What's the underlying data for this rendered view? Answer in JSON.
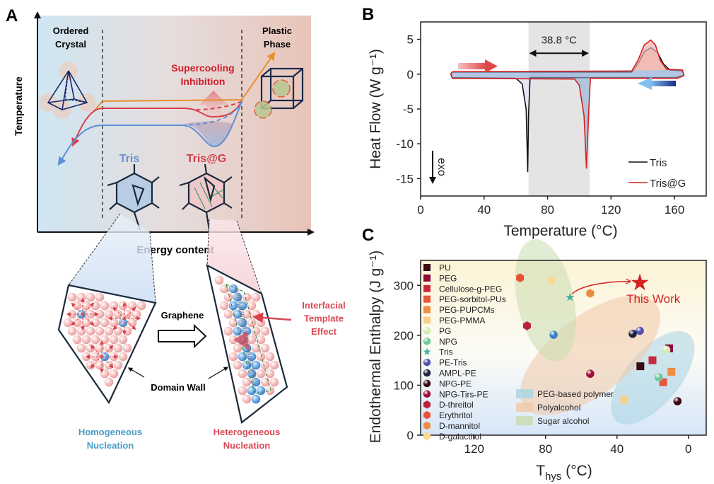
{
  "panels": {
    "a": {
      "letter": "A",
      "y_axis": "Temperature",
      "x_axis": "Energy content",
      "ordered_crystal": [
        "Ordered",
        "Crystal"
      ],
      "plastic_phase": [
        "Plastic",
        "Phase"
      ],
      "supercooling": [
        "Supercooling",
        "Inhibition"
      ],
      "tris": "Tris",
      "tris_g": "Tris@G",
      "graphene": "Graphene",
      "domain_wall": "Domain Wall",
      "interfacial": [
        "Interfacial",
        "Template",
        "Effect"
      ],
      "homogeneous": [
        "Homogeneous",
        "Nucleation"
      ],
      "heterogeneous": [
        "Heterogeneous",
        "Nucleation"
      ],
      "colors": {
        "orange": "#e8902a",
        "red": "#d9404a",
        "blue": "#5b8fd6",
        "tris_text": "#6b8fd0",
        "red_text": "#d0202a",
        "homo_text": "#4a9cc7",
        "hetero_text": "#d84a55"
      }
    },
    "b": {
      "letter": "B"
    },
    "c": {
      "letter": "C"
    }
  },
  "chart_data": [
    {
      "panel": "B",
      "type": "line",
      "xlabel": "Temperature (°C)",
      "ylabel": "Heat Flow (W g⁻¹)",
      "xlim": [
        0,
        180
      ],
      "ylim": [
        -17.5,
        7.5
      ],
      "xticks": [
        0,
        40,
        80,
        120,
        160
      ],
      "yticks": [
        5,
        0,
        -5,
        -10,
        -15
      ],
      "shaded_range": [
        68,
        106.5
      ],
      "annotation": "38.8 °C",
      "exo_label": "exo",
      "legend": "bottom-right",
      "series": [
        {
          "name": "Tris",
          "color": "#111111",
          "heating": [
            [
              20,
              0.3
            ],
            [
              133,
              0.3
            ],
            [
              137,
              1.5
            ],
            [
              141,
              3.2
            ],
            [
              145,
              3.8
            ],
            [
              149,
              3.2
            ],
            [
              153,
              1.5
            ],
            [
              157,
              0.6
            ],
            [
              165,
              0.5
            ]
          ],
          "cooling": [
            [
              165,
              0.5
            ],
            [
              166,
              -0.2
            ],
            [
              160,
              -0.5
            ],
            [
              69,
              -0.5
            ],
            [
              68,
              -6
            ],
            [
              67.5,
              -14
            ],
            [
              66.5,
              -5
            ],
            [
              64,
              -1.4
            ],
            [
              60,
              -0.6
            ],
            [
              20,
              -0.5
            ],
            [
              19,
              0
            ],
            [
              20,
              0.3
            ]
          ]
        },
        {
          "name": "Tris@G",
          "color": "#d42020",
          "heating": [
            [
              20,
              0.35
            ],
            [
              133,
              0.45
            ],
            [
              137,
              2
            ],
            [
              141,
              4.2
            ],
            [
              145,
              4.9
            ],
            [
              148,
              4.2
            ],
            [
              151,
              2
            ],
            [
              155,
              0.7
            ],
            [
              165,
              0.6
            ]
          ],
          "cooling": [
            [
              165,
              0.6
            ],
            [
              166,
              -0.2
            ],
            [
              162,
              -0.6
            ],
            [
              107,
              -0.6
            ],
            [
              106,
              -5
            ],
            [
              104.5,
              -13.5
            ],
            [
              103,
              -6
            ],
            [
              100,
              -1.6
            ],
            [
              97,
              -0.7
            ],
            [
              20,
              -0.6
            ],
            [
              19,
              0
            ],
            [
              20,
              0.35
            ]
          ]
        }
      ]
    },
    {
      "panel": "C",
      "type": "scatter",
      "xlabel": "T",
      "xlabel_sub": "hys",
      "xlabel_unit": " (°C)",
      "ylabel": "Endothermal Enthalpy (J g⁻¹)",
      "xlim": [
        150,
        -10
      ],
      "ylim": [
        0,
        350
      ],
      "xticks": [
        120,
        80,
        40,
        0
      ],
      "yticks": [
        0,
        100,
        200,
        300
      ],
      "legend": "left",
      "highlight": {
        "label": "This Work",
        "x": 27.2,
        "y": 305,
        "color": "#d42020"
      },
      "regions": [
        {
          "name": "PEG-based polymer",
          "color": "#a8d4e4"
        },
        {
          "name": "Polyalcohol",
          "color": "#f0c8a8"
        },
        {
          "name": "Sugar alcohol",
          "color": "#c8dcb0"
        }
      ],
      "series": [
        {
          "name": "PU",
          "marker": "square",
          "color": "#3a0a14",
          "points": [
            [
              26.9,
              138
            ]
          ]
        },
        {
          "name": "PEG",
          "marker": "square",
          "color": "#8b0a3a",
          "points": [
            [
              10.8,
              174
            ]
          ]
        },
        {
          "name": "Cellulose-g-PEG",
          "marker": "square",
          "color": "#c8283c",
          "points": [
            [
              20.1,
              150
            ]
          ]
        },
        {
          "name": "PEG-sorbitol-PUs",
          "marker": "square",
          "color": "#e8553a",
          "points": [
            [
              14.1,
              106
            ]
          ]
        },
        {
          "name": "PEG-PUPCMs",
          "marker": "square",
          "color": "#f08c40",
          "points": [
            [
              9.5,
              127
            ]
          ]
        },
        {
          "name": "PEG-PMMA",
          "marker": "square",
          "color": "#fcd08a",
          "points": [
            [
              35.9,
              71
            ]
          ]
        },
        {
          "name": "PG",
          "marker": "sphere",
          "color": "#d0ecb0",
          "points": [
            [
              12.4,
              171
            ]
          ]
        },
        {
          "name": "NPG",
          "marker": "sphere",
          "color": "#6cc898",
          "points": [
            [
              16.6,
              116
            ]
          ]
        },
        {
          "name": "Tris",
          "marker": "star",
          "color": "#40b0a0",
          "points": [
            [
              66.3,
              276
            ]
          ]
        },
        {
          "name": "PE-Tris",
          "marker": "sphere",
          "color": "#5050b0",
          "points": [
            [
              27.2,
              209
            ]
          ]
        },
        {
          "name": "AMPL-PE",
          "marker": "sphere",
          "color": "#202040",
          "points": [
            [
              31.2,
              203
            ]
          ]
        },
        {
          "name": "NPG-PE",
          "marker": "sphere",
          "color": "#3a0510",
          "points": [
            [
              6.1,
              68
            ]
          ]
        },
        {
          "name": "NPG-Tirs-PE",
          "marker": "sphere",
          "color": "#a00a3a",
          "points": [
            [
              55,
              123
            ]
          ]
        },
        {
          "name": "D-threitol",
          "marker": "hexagon",
          "color": "#c02040",
          "points": [
            [
              90.4,
              219
            ]
          ]
        },
        {
          "name": "Erythritol",
          "marker": "hexagon",
          "color": "#e85038",
          "points": [
            [
              94.3,
              315
            ]
          ]
        },
        {
          "name": "D-mannitol",
          "marker": "hexagon",
          "color": "#f08a40",
          "points": [
            [
              55,
              284
            ]
          ]
        },
        {
          "name": "D-galactitol",
          "marker": "hexagon",
          "color": "#fcd890",
          "points": [
            [
              77.1,
              310
            ]
          ]
        }
      ],
      "other_points": [
        {
          "marker": "sphere",
          "color": "#3a7fc0",
          "x": 75.5,
          "y": 201
        }
      ]
    }
  ]
}
